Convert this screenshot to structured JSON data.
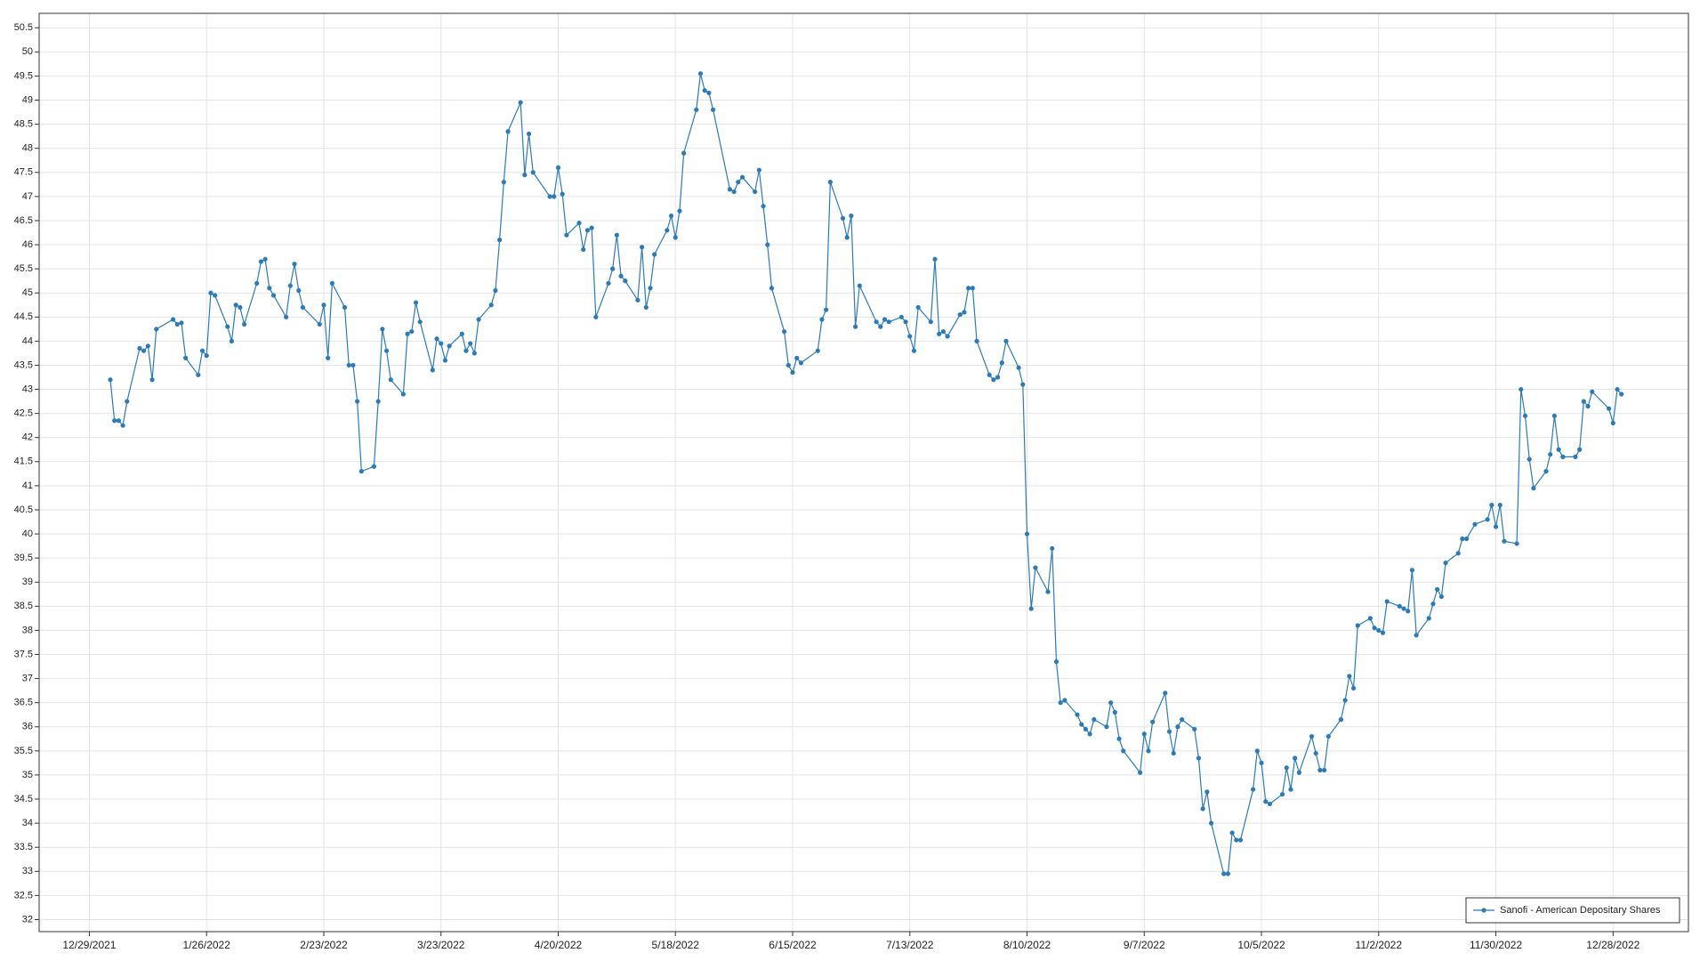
{
  "chart_data": {
    "type": "line",
    "x": [
      "1/3/2022",
      "1/4/2022",
      "1/5/2022",
      "1/6/2022",
      "1/7/2022",
      "1/10/2022",
      "1/11/2022",
      "1/12/2022",
      "1/13/2022",
      "1/14/2022",
      "1/18/2022",
      "1/19/2022",
      "1/20/2022",
      "1/21/2022",
      "1/24/2022",
      "1/25/2022",
      "1/26/2022",
      "1/27/2022",
      "1/28/2022",
      "1/31/2022",
      "2/1/2022",
      "2/2/2022",
      "2/3/2022",
      "2/4/2022",
      "2/7/2022",
      "2/8/2022",
      "2/9/2022",
      "2/10/2022",
      "2/11/2022",
      "2/14/2022",
      "2/15/2022",
      "2/16/2022",
      "2/17/2022",
      "2/18/2022",
      "2/22/2022",
      "2/23/2022",
      "2/24/2022",
      "2/25/2022",
      "2/28/2022",
      "3/1/2022",
      "3/2/2022",
      "3/3/2022",
      "3/4/2022",
      "3/7/2022",
      "3/8/2022",
      "3/9/2022",
      "3/10/2022",
      "3/11/2022",
      "3/14/2022",
      "3/15/2022",
      "3/16/2022",
      "3/17/2022",
      "3/18/2022",
      "3/21/2022",
      "3/22/2022",
      "3/23/2022",
      "3/24/2022",
      "3/25/2022",
      "3/28/2022",
      "3/29/2022",
      "3/30/2022",
      "3/31/2022",
      "4/1/2022",
      "4/4/2022",
      "4/5/2022",
      "4/6/2022",
      "4/7/2022",
      "4/8/2022",
      "4/11/2022",
      "4/12/2022",
      "4/13/2022",
      "4/14/2022",
      "4/18/2022",
      "4/19/2022",
      "4/20/2022",
      "4/21/2022",
      "4/22/2022",
      "4/25/2022",
      "4/26/2022",
      "4/27/2022",
      "4/28/2022",
      "4/29/2022",
      "5/2/2022",
      "5/3/2022",
      "5/4/2022",
      "5/5/2022",
      "5/6/2022",
      "5/9/2022",
      "5/10/2022",
      "5/11/2022",
      "5/12/2022",
      "5/13/2022",
      "5/16/2022",
      "5/17/2022",
      "5/18/2022",
      "5/19/2022",
      "5/20/2022",
      "5/23/2022",
      "5/24/2022",
      "5/25/2022",
      "5/26/2022",
      "5/27/2022",
      "5/31/2022",
      "6/1/2022",
      "6/2/2022",
      "6/3/2022",
      "6/6/2022",
      "6/7/2022",
      "6/8/2022",
      "6/9/2022",
      "6/10/2022",
      "6/13/2022",
      "6/14/2022",
      "6/15/2022",
      "6/16/2022",
      "6/17/2022",
      "6/21/2022",
      "6/22/2022",
      "6/23/2022",
      "6/24/2022",
      "6/27/2022",
      "6/28/2022",
      "6/29/2022",
      "6/30/2022",
      "7/1/2022",
      "7/5/2022",
      "7/6/2022",
      "7/7/2022",
      "7/8/2022",
      "7/11/2022",
      "7/12/2022",
      "7/13/2022",
      "7/14/2022",
      "7/15/2022",
      "7/18/2022",
      "7/19/2022",
      "7/20/2022",
      "7/21/2022",
      "7/22/2022",
      "7/25/2022",
      "7/26/2022",
      "7/27/2022",
      "7/28/2022",
      "7/29/2022",
      "8/1/2022",
      "8/2/2022",
      "8/3/2022",
      "8/4/2022",
      "8/5/2022",
      "8/8/2022",
      "8/9/2022",
      "8/10/2022",
      "8/11/2022",
      "8/12/2022",
      "8/15/2022",
      "8/16/2022",
      "8/17/2022",
      "8/18/2022",
      "8/19/2022",
      "8/22/2022",
      "8/23/2022",
      "8/24/2022",
      "8/25/2022",
      "8/26/2022",
      "8/29/2022",
      "8/30/2022",
      "8/31/2022",
      "9/1/2022",
      "9/2/2022",
      "9/6/2022",
      "9/7/2022",
      "9/8/2022",
      "9/9/2022",
      "9/12/2022",
      "9/13/2022",
      "9/14/2022",
      "9/15/2022",
      "9/16/2022",
      "9/19/2022",
      "9/20/2022",
      "9/21/2022",
      "9/22/2022",
      "9/23/2022",
      "9/26/2022",
      "9/27/2022",
      "9/28/2022",
      "9/29/2022",
      "9/30/2022",
      "10/3/2022",
      "10/4/2022",
      "10/5/2022",
      "10/6/2022",
      "10/7/2022",
      "10/10/2022",
      "10/11/2022",
      "10/12/2022",
      "10/13/2022",
      "10/14/2022",
      "10/17/2022",
      "10/18/2022",
      "10/19/2022",
      "10/20/2022",
      "10/21/2022",
      "10/24/2022",
      "10/25/2022",
      "10/26/2022",
      "10/27/2022",
      "10/28/2022",
      "10/31/2022",
      "11/1/2022",
      "11/2/2022",
      "11/3/2022",
      "11/4/2022",
      "11/7/2022",
      "11/8/2022",
      "11/9/2022",
      "11/10/2022",
      "11/11/2022",
      "11/14/2022",
      "11/15/2022",
      "11/16/2022",
      "11/17/2022",
      "11/18/2022",
      "11/21/2022",
      "11/22/2022",
      "11/23/2022",
      "11/25/2022",
      "11/28/2022",
      "11/29/2022",
      "11/30/2022",
      "12/1/2022",
      "12/2/2022",
      "12/5/2022",
      "12/6/2022",
      "12/7/2022",
      "12/8/2022",
      "12/9/2022",
      "12/12/2022",
      "12/13/2022",
      "12/14/2022",
      "12/15/2022",
      "12/16/2022",
      "12/19/2022",
      "12/20/2022",
      "12/21/2022",
      "12/22/2022",
      "12/23/2022",
      "12/27/2022",
      "12/28/2022",
      "12/29/2022",
      "12/30/2022"
    ],
    "series": [
      {
        "name": "Sanofi - American Depositary Shares",
        "color": "#2b7bb9",
        "values": [
          43.2,
          42.35,
          42.35,
          42.25,
          42.75,
          43.85,
          43.8,
          43.9,
          43.2,
          44.25,
          44.45,
          44.35,
          44.38,
          43.65,
          43.3,
          43.8,
          43.7,
          45.0,
          44.95,
          44.3,
          44.0,
          44.75,
          44.7,
          44.35,
          45.2,
          45.65,
          45.7,
          45.1,
          44.95,
          44.5,
          45.15,
          45.6,
          45.05,
          44.7,
          44.35,
          44.75,
          43.65,
          45.2,
          44.7,
          43.5,
          43.5,
          42.75,
          41.3,
          41.4,
          42.75,
          44.25,
          43.8,
          43.2,
          42.9,
          44.15,
          44.2,
          44.8,
          44.4,
          43.4,
          44.05,
          43.95,
          43.6,
          43.9,
          44.15,
          43.8,
          43.95,
          43.75,
          44.45,
          44.75,
          45.05,
          46.1,
          47.3,
          48.35,
          48.95,
          47.45,
          48.3,
          47.5,
          47.0,
          47.0,
          47.6,
          47.05,
          46.2,
          46.45,
          45.9,
          46.3,
          46.35,
          44.5,
          45.2,
          45.5,
          46.2,
          45.35,
          45.25,
          44.85,
          45.95,
          44.7,
          45.1,
          45.8,
          46.3,
          46.6,
          46.15,
          46.7,
          47.9,
          48.8,
          49.55,
          49.2,
          49.15,
          48.8,
          47.15,
          47.1,
          47.3,
          47.4,
          47.1,
          47.55,
          46.8,
          46.0,
          45.1,
          44.2,
          43.5,
          43.35,
          43.65,
          43.55,
          43.8,
          44.45,
          44.65,
          47.3,
          46.55,
          46.15,
          46.6,
          44.3,
          45.15,
          44.4,
          44.3,
          44.45,
          44.4,
          44.5,
          44.4,
          44.1,
          43.8,
          44.7,
          44.4,
          45.7,
          44.15,
          44.2,
          44.1,
          44.55,
          44.6,
          45.1,
          45.1,
          44.0,
          43.3,
          43.2,
          43.25,
          43.55,
          44.0,
          43.45,
          43.1,
          40.0,
          38.45,
          39.3,
          38.8,
          39.7,
          37.35,
          36.5,
          36.55,
          36.25,
          36.05,
          35.95,
          35.85,
          36.15,
          36.0,
          36.5,
          36.3,
          35.75,
          35.5,
          35.05,
          35.85,
          35.5,
          36.1,
          36.7,
          35.9,
          35.45,
          36.0,
          36.15,
          35.95,
          35.35,
          34.3,
          34.65,
          34.0,
          32.95,
          32.95,
          33.8,
          33.65,
          33.65,
          34.7,
          35.5,
          35.25,
          34.45,
          34.4,
          34.6,
          35.15,
          34.7,
          35.35,
          35.05,
          35.8,
          35.45,
          35.1,
          35.1,
          35.8,
          36.15,
          36.55,
          37.05,
          36.8,
          38.1,
          38.25,
          38.05,
          38.0,
          37.95,
          38.6,
          38.5,
          38.45,
          38.4,
          39.25,
          37.9,
          38.25,
          38.55,
          38.85,
          38.7,
          39.4,
          39.6,
          39.9,
          39.9,
          40.2,
          40.3,
          40.6,
          40.15,
          40.6,
          39.85,
          39.8,
          43.0,
          42.45,
          41.55,
          40.95,
          41.3,
          41.65,
          42.45,
          41.75,
          41.6,
          41.6,
          41.75,
          42.75,
          42.65,
          42.95,
          42.6,
          42.3,
          43.0,
          42.9
        ]
      }
    ],
    "xlim": [
      "12/17/2021",
      "1/15/2023"
    ],
    "xticks": [
      "12/29/2021",
      "1/26/2022",
      "2/23/2022",
      "3/23/2022",
      "4/20/2022",
      "5/18/2022",
      "6/15/2022",
      "7/13/2022",
      "8/10/2022",
      "9/7/2022",
      "10/5/2022",
      "11/2/2022",
      "11/30/2022",
      "12/28/2022"
    ],
    "ylim": [
      31.75,
      50.8
    ],
    "yticks": [
      32,
      32.5,
      33,
      33.5,
      34,
      34.5,
      35,
      35.5,
      36,
      36.5,
      37,
      37.5,
      38,
      38.5,
      39,
      39.5,
      40,
      40.5,
      41,
      41.5,
      42,
      42.5,
      43,
      43.5,
      44,
      44.5,
      45,
      45.5,
      46,
      46.5,
      47,
      47.5,
      48,
      48.5,
      49,
      49.5,
      50,
      50.5
    ],
    "grid": true,
    "legend": "lower right"
  }
}
